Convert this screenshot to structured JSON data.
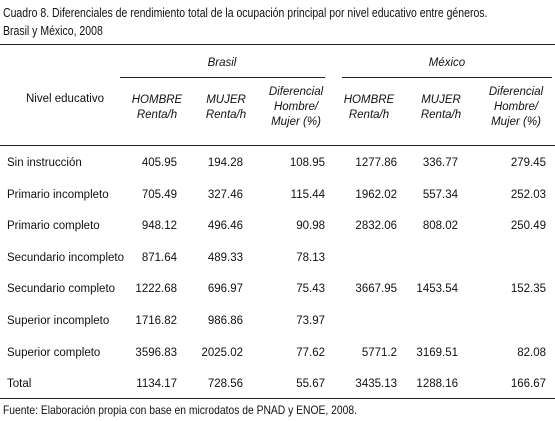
{
  "header": {
    "title": "Cuadro 8. Diferenciales de rendimiento total de la ocupación principal por nivel educativo entre géneros.",
    "subtitle": "Brasil y México, 2008"
  },
  "table": {
    "row_header": "Nivel educativo",
    "groups": [
      "Brasil",
      "México"
    ],
    "columns": [
      "HOMBRE Renta/h",
      "MUJER Renta/h",
      "Diferencial Hombre/ Mujer (%)",
      "HOMBRE Renta/h",
      "MUJER Renta/h",
      "Diferencial Hombre/ Mujer (%)"
    ],
    "rows": [
      [
        "Sin instrucción",
        405.95,
        194.28,
        108.95,
        1277.86,
        336.77,
        279.45
      ],
      [
        "Primario incompleto",
        705.49,
        327.46,
        115.44,
        1962.02,
        557.34,
        252.03
      ],
      [
        "Primario completo",
        948.12,
        496.46,
        90.98,
        2832.06,
        808.02,
        250.49
      ],
      [
        "Secundario incompleto",
        871.64,
        489.33,
        78.13,
        null,
        null,
        null
      ],
      [
        "Secundario completo",
        1222.68,
        696.97,
        75.43,
        3667.95,
        1453.54,
        152.35
      ],
      [
        "Superior incompleto",
        1716.82,
        986.86,
        73.97,
        null,
        null,
        null
      ],
      [
        "Superior completo",
        3596.83,
        2025.02,
        77.62,
        5771.2,
        3169.51,
        82.08
      ],
      [
        "Total",
        1134.17,
        728.56,
        55.67,
        3435.13,
        1288.16,
        166.67
      ]
    ]
  },
  "footer": {
    "source": "Fuente: Elaboración propia con base en microdatos de PNAD y ENOE, 2008."
  }
}
